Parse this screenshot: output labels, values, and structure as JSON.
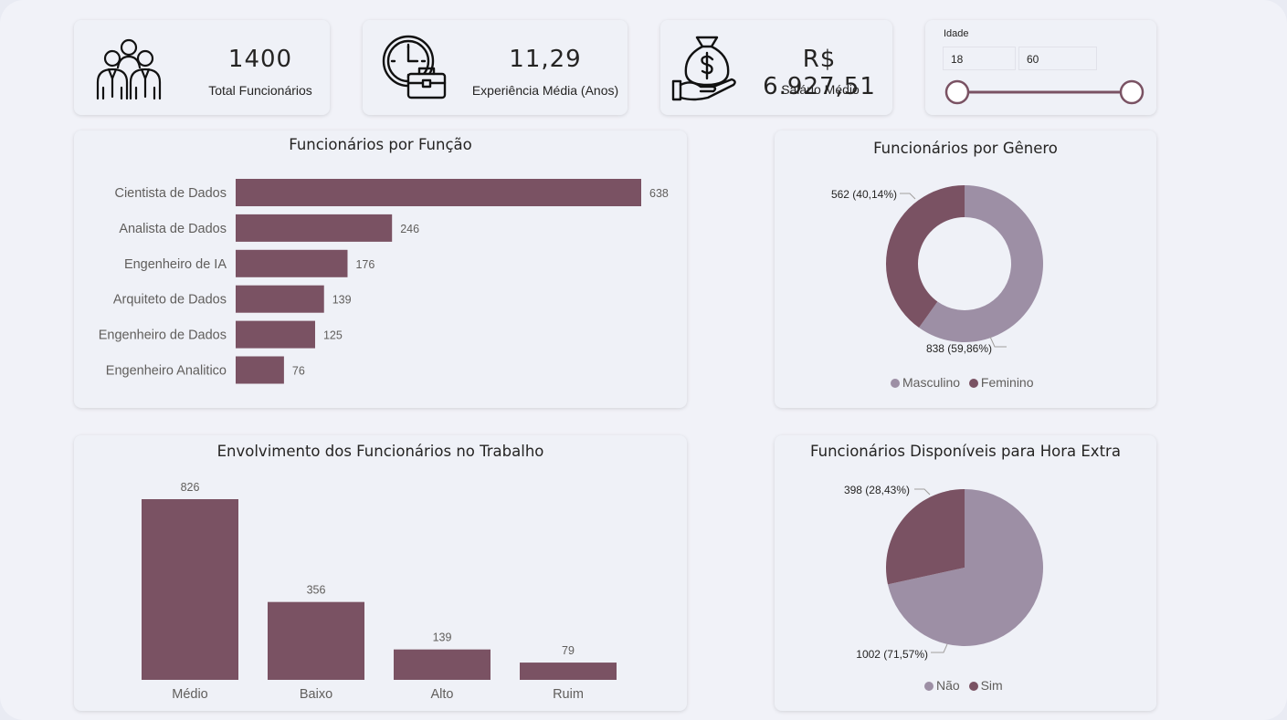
{
  "kpis": {
    "total": {
      "value": "1400",
      "label": "Total Funcionários",
      "icon": "people-group-icon"
    },
    "experience": {
      "value": "11,29",
      "label": "Experiência Média (Anos)",
      "icon": "clock-briefcase-icon"
    },
    "salary": {
      "value": "R$ 6.927,51",
      "label": "Salário Médio",
      "icon": "money-bag-hand-icon"
    }
  },
  "age_slider": {
    "label": "Idade",
    "min": "18",
    "max": "60",
    "track_color": "#7a5263"
  },
  "colors": {
    "primary": "#7a5263",
    "secondary": "#9d8fa5"
  },
  "chart_data": [
    {
      "type": "bar",
      "orientation": "horizontal",
      "title": "Funcionários por Função",
      "categories": [
        "Cientista de Dados",
        "Analista de Dados",
        "Engenheiro de IA",
        "Arquiteto de Dados",
        "Engenheiro de Dados",
        "Engenheiro Analitico"
      ],
      "values": [
        638,
        246,
        176,
        139,
        125,
        76
      ],
      "labels": [
        "638",
        "246",
        "176",
        "139",
        "125",
        "76"
      ],
      "color": "#7a5263"
    },
    {
      "type": "pie",
      "variant": "donut",
      "title": "Funcionários por Gênero",
      "categories": [
        "Masculino",
        "Feminino"
      ],
      "values": [
        838,
        562
      ],
      "labels": [
        "838 (59,86%)",
        "562 (40,14%)"
      ],
      "colors": [
        "#9d8fa5",
        "#7a5263"
      ],
      "legend": "bottom"
    },
    {
      "type": "bar",
      "orientation": "vertical",
      "title": "Envolvimento dos Funcionários no Trabalho",
      "categories": [
        "Médio",
        "Baixo",
        "Alto",
        "Ruim"
      ],
      "values": [
        826,
        356,
        139,
        79
      ],
      "labels": [
        "826",
        "356",
        "139",
        "79"
      ],
      "color": "#7a5263"
    },
    {
      "type": "pie",
      "title": "Funcionários Disponíveis para Hora Extra",
      "categories": [
        "Não",
        "Sim"
      ],
      "values": [
        1002,
        398
      ],
      "labels": [
        "1002 (71,57%)",
        "398 (28,43%)"
      ],
      "colors": [
        "#9d8fa5",
        "#7a5263"
      ],
      "legend": "bottom"
    }
  ]
}
